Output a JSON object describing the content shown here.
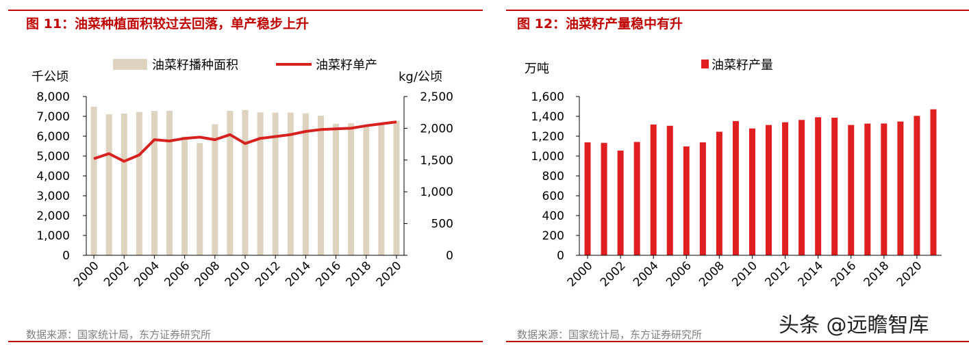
{
  "left": {
    "title": "图 11：油菜种植面积较过去回落，单产稳步上升",
    "source": "数据来源：国家统计局，东方证券研究所"
  },
  "right": {
    "title": "图 12：油菜籽产量稳中有升",
    "source": "数据来源：国家统计局，东方证券研究所"
  },
  "watermark": "头条 @远瞻智库",
  "colors": {
    "accent": "#c00000",
    "bar_area": "#ddd3be",
    "line_yield": "#d7211f",
    "bar_output": "#e02020"
  },
  "chart_data": [
    {
      "type": "bar",
      "combo": "bar+line, dual y-axis",
      "title": "",
      "x": [
        2000,
        2001,
        2002,
        2003,
        2004,
        2005,
        2006,
        2007,
        2008,
        2009,
        2010,
        2011,
        2012,
        2013,
        2014,
        2015,
        2016,
        2017,
        2018,
        2019,
        2020
      ],
      "xtick_labels": [
        "2000",
        "2002",
        "2004",
        "2006",
        "2008",
        "2010",
        "2012",
        "2014",
        "2016",
        "2018",
        "2020"
      ],
      "y_left_unit": "千公顷",
      "y_right_unit": "kg/公顷",
      "y_left_lim": [
        0,
        8000
      ],
      "y_right_lim": [
        0,
        2500
      ],
      "y_left_ticks": [
        "0",
        "1,000",
        "2,000",
        "3,000",
        "4,000",
        "5,000",
        "6,000",
        "7,000",
        "8,000"
      ],
      "y_right_ticks": [
        "0",
        "500",
        "1,000",
        "1,500",
        "2,000",
        "2,500"
      ],
      "legend_position": "top",
      "grid": false,
      "series": [
        {
          "name": "油菜籽播种面积",
          "type": "bar",
          "axis": "left",
          "values": [
            7490,
            7100,
            7140,
            7220,
            7270,
            7280,
            5980,
            5650,
            6600,
            7280,
            7320,
            7200,
            7190,
            7190,
            7150,
            7030,
            6620,
            6650,
            6560,
            6580,
            6770
          ]
        },
        {
          "name": "油菜籽单产",
          "type": "line",
          "axis": "right",
          "values": [
            1520,
            1600,
            1480,
            1580,
            1820,
            1800,
            1840,
            1860,
            1820,
            1900,
            1760,
            1840,
            1870,
            1900,
            1950,
            1980,
            1990,
            2000,
            2040,
            2070,
            2100
          ]
        }
      ]
    },
    {
      "type": "bar",
      "title": "",
      "x": [
        2000,
        2001,
        2002,
        2003,
        2004,
        2005,
        2006,
        2007,
        2008,
        2009,
        2010,
        2011,
        2012,
        2013,
        2014,
        2015,
        2016,
        2017,
        2018,
        2019,
        2020,
        2021
      ],
      "xtick_labels": [
        "2000",
        "2002",
        "2004",
        "2006",
        "2008",
        "2010",
        "2012",
        "2014",
        "2016",
        "2018",
        "2020"
      ],
      "y_unit": "万吨",
      "ylim": [
        0,
        1600
      ],
      "y_ticks": [
        "0",
        "200",
        "400",
        "600",
        "800",
        "1,000",
        "1,200",
        "1,400",
        "1,600"
      ],
      "legend_position": "top",
      "grid": false,
      "series": [
        {
          "name": "油菜籽产量",
          "values": [
            1138,
            1133,
            1055,
            1142,
            1318,
            1305,
            1097,
            1138,
            1245,
            1353,
            1278,
            1313,
            1340,
            1364,
            1391,
            1386,
            1313,
            1327,
            1328,
            1348,
            1405,
            1471
          ]
        }
      ]
    }
  ]
}
